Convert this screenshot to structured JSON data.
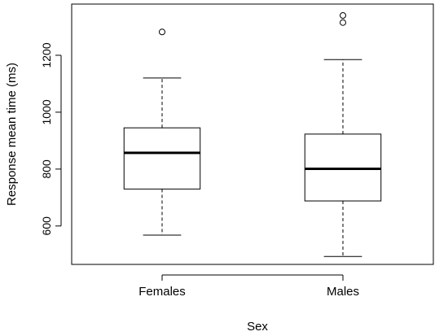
{
  "chart_data": {
    "type": "boxplot",
    "title": "",
    "xlabel": "Sex",
    "ylabel": "Response mean time (ms)",
    "categories": [
      "Females",
      "Males"
    ],
    "ylim": [
      465,
      1380
    ],
    "yticks": [
      600,
      800,
      1000,
      1200
    ],
    "grid": false,
    "legend": "none",
    "boxes": [
      {
        "category": "Females",
        "whisker_low": 568,
        "q1": 730,
        "median": 857,
        "q3": 945,
        "whisker_high": 1120,
        "outliers": [
          1282
        ]
      },
      {
        "category": "Males",
        "whisker_low": 493,
        "q1": 688,
        "median": 801,
        "q3": 923,
        "whisker_high": 1185,
        "outliers": [
          1315,
          1340
        ]
      }
    ]
  }
}
